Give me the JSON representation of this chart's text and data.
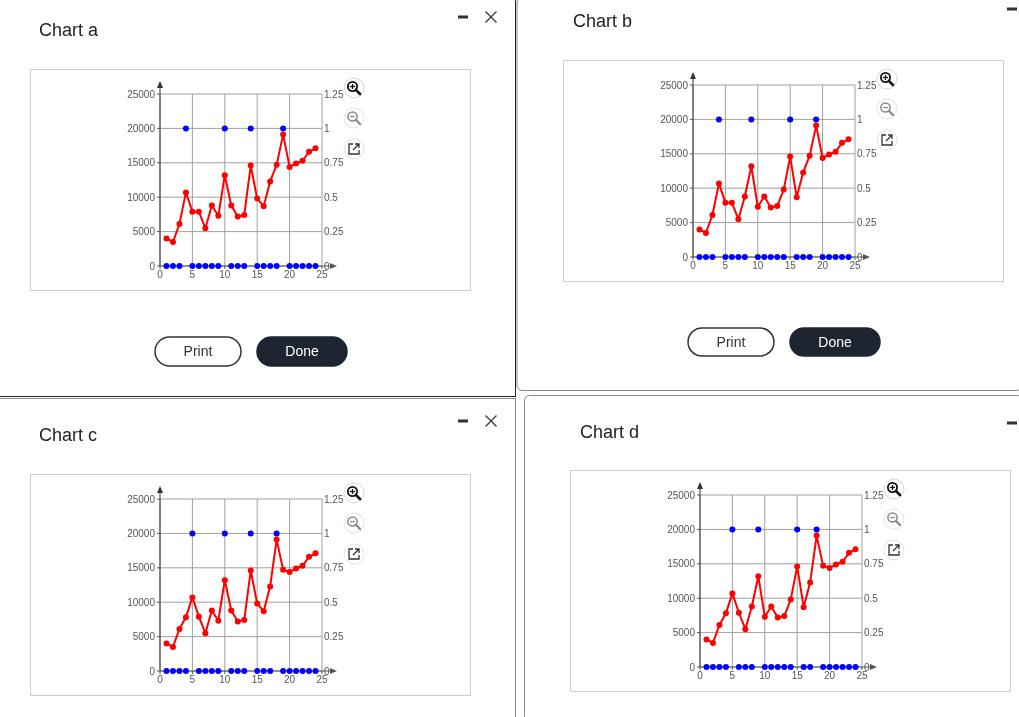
{
  "chart_data": [
    {
      "type": "line",
      "title": "Chart a",
      "annotations": [
        "Print",
        "Done"
      ],
      "x": [
        1,
        2,
        3,
        4,
        5,
        6,
        7,
        8,
        9,
        10,
        11,
        12,
        13,
        14,
        15,
        16,
        17,
        18,
        19,
        20,
        21,
        22,
        23,
        24
      ],
      "xlim": [
        0,
        25
      ],
      "xticks": [
        0,
        5,
        10,
        15,
        20,
        25
      ],
      "ylim": [
        0,
        25000
      ],
      "yticks": [
        0,
        5000,
        10000,
        15000,
        20000,
        25000
      ],
      "y2lim": [
        0,
        1.25
      ],
      "y2ticks": [
        0,
        0.25,
        0.5,
        0.75,
        1,
        1.25
      ],
      "grid": true,
      "marker": "circle",
      "line_style": "solid",
      "series": [
        {
          "color": "#ff0000",
          "values": [
            4000,
            3500,
            6100,
            10700,
            7900,
            7900,
            5500,
            8800,
            7300,
            13200,
            8800,
            7200,
            7400,
            14600,
            9800,
            8700,
            12300,
            14700,
            19100,
            14400,
            14900,
            15300,
            16600,
            17100
          ]
        },
        {
          "type": "scatter",
          "axis": "y2",
          "color": "#0000ff",
          "values": [
            0,
            0,
            0,
            1,
            0,
            0,
            0,
            0,
            0,
            1,
            0,
            0,
            0,
            1,
            0,
            0,
            0,
            0,
            1,
            0,
            0,
            0,
            0,
            0
          ]
        }
      ]
    },
    {
      "type": "line",
      "title": "Chart b",
      "annotations": [
        "Print",
        "Done"
      ],
      "x": [
        1,
        2,
        3,
        4,
        5,
        6,
        7,
        8,
        9,
        10,
        11,
        12,
        13,
        14,
        15,
        16,
        17,
        18,
        19,
        20,
        21,
        22,
        23,
        24
      ],
      "xlim": [
        0,
        25
      ],
      "xticks": [
        0,
        5,
        10,
        15,
        20,
        25
      ],
      "ylim": [
        0,
        25000
      ],
      "yticks": [
        0,
        5000,
        10000,
        15000,
        20000,
        25000
      ],
      "y2lim": [
        0,
        1.25
      ],
      "y2ticks": [
        0,
        0.25,
        0.5,
        0.75,
        1,
        1.25
      ],
      "grid": true,
      "marker": "circle",
      "line_style": "solid",
      "series": [
        {
          "color": "#ff0000",
          "values": [
            4000,
            3500,
            6100,
            10700,
            7900,
            7900,
            5500,
            8800,
            13200,
            7300,
            8800,
            7200,
            7400,
            9800,
            14600,
            8700,
            12300,
            14700,
            19100,
            14400,
            14900,
            15300,
            16600,
            17100
          ]
        },
        {
          "type": "scatter",
          "axis": "y2",
          "color": "#0000ff",
          "values": [
            0,
            0,
            0,
            1,
            0,
            0,
            0,
            0,
            1,
            0,
            0,
            0,
            0,
            0,
            1,
            0,
            0,
            0,
            1,
            0,
            0,
            0,
            0,
            0
          ]
        }
      ]
    },
    {
      "type": "line",
      "title": "Chart c",
      "x": [
        1,
        2,
        3,
        4,
        5,
        6,
        7,
        8,
        9,
        10,
        11,
        12,
        13,
        14,
        15,
        16,
        17,
        18,
        19,
        20,
        21,
        22,
        23,
        24
      ],
      "xlim": [
        0,
        25
      ],
      "xticks": [
        0,
        5,
        10,
        15,
        20,
        25
      ],
      "ylim": [
        0,
        25000
      ],
      "yticks": [
        0,
        5000,
        10000,
        15000,
        20000,
        25000
      ],
      "y2lim": [
        0,
        1.25
      ],
      "y2ticks": [
        0,
        0.25,
        0.5,
        0.75,
        1,
        1.25
      ],
      "grid": true,
      "marker": "circle",
      "line_style": "solid",
      "series": [
        {
          "color": "#ff0000",
          "values": [
            4000,
            3500,
            6100,
            7800,
            10700,
            7900,
            5500,
            8800,
            7300,
            13200,
            8800,
            7200,
            7400,
            14600,
            9800,
            8700,
            12300,
            19100,
            14700,
            14400,
            14900,
            15300,
            16600,
            17100
          ]
        },
        {
          "type": "scatter",
          "axis": "y2",
          "color": "#0000ff",
          "values": [
            0,
            0,
            0,
            0,
            1,
            0,
            0,
            0,
            0,
            1,
            0,
            0,
            0,
            1,
            0,
            0,
            0,
            1,
            0,
            0,
            0,
            0,
            0,
            0
          ]
        }
      ]
    },
    {
      "type": "line",
      "title": "Chart d",
      "x": [
        1,
        2,
        3,
        4,
        5,
        6,
        7,
        8,
        9,
        10,
        11,
        12,
        13,
        14,
        15,
        16,
        17,
        18,
        19,
        20,
        21,
        22,
        23,
        24
      ],
      "xlim": [
        0,
        25
      ],
      "xticks": [
        0,
        5,
        10,
        15,
        20,
        25
      ],
      "ylim": [
        0,
        25000
      ],
      "yticks": [
        0,
        5000,
        10000,
        15000,
        20000,
        25000
      ],
      "y2lim": [
        0,
        1.25
      ],
      "y2ticks": [
        0,
        0.25,
        0.5,
        0.75,
        1,
        1.25
      ],
      "grid": true,
      "marker": "circle",
      "line_style": "solid",
      "series": [
        {
          "color": "#ff0000",
          "values": [
            4000,
            3500,
            6100,
            7800,
            10700,
            7900,
            5500,
            8800,
            13200,
            7300,
            8800,
            7200,
            7400,
            9800,
            14600,
            8700,
            12300,
            19100,
            14700,
            14400,
            14900,
            15300,
            16600,
            17100
          ]
        },
        {
          "type": "scatter",
          "axis": "y2",
          "color": "#0000ff",
          "values": [
            0,
            0,
            0,
            0,
            1,
            0,
            0,
            0,
            1,
            0,
            0,
            0,
            0,
            0,
            1,
            0,
            0,
            1,
            0,
            0,
            0,
            0,
            0,
            0
          ]
        }
      ]
    }
  ]
}
